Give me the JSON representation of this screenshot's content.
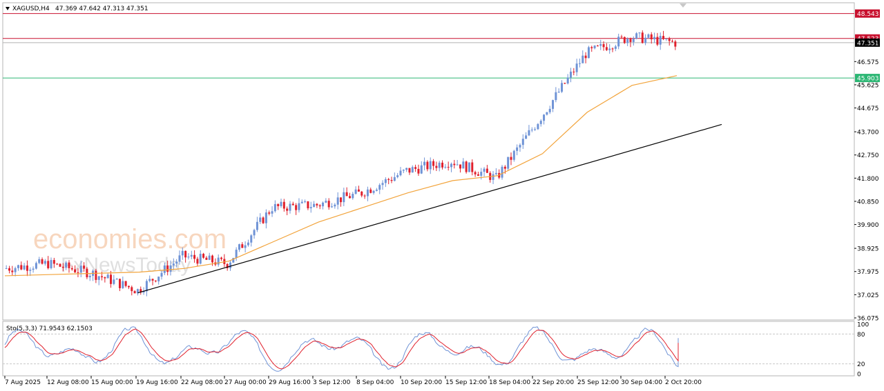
{
  "header": {
    "symbol": "XAGUSD,H4",
    "ohlc": "47.369 47.642 47.313 47.351"
  },
  "watermark": {
    "brand": "economies.com",
    "secondary": "FxNewsToday"
  },
  "colors": {
    "bull": "#6f93d6",
    "bear": "#e0202c",
    "ma": "#f2a33a",
    "trendline": "#000000",
    "resistance": "#c8102e",
    "support": "#2bb673",
    "stoch_main": "#6f93d6",
    "stoch_signal": "#e0202c"
  },
  "levels": {
    "resistance_1": "48.543",
    "resistance_2": "47.523",
    "current_price": "47.351",
    "support": "45.903"
  },
  "indicator": {
    "label": "Sto(5,3,3) 71.9543 62.1503",
    "axis_labels": [
      "100",
      "80",
      "20",
      "0"
    ]
  },
  "price_axis": [
    "48.543",
    "47.523",
    "47.351",
    "46.575",
    "45.903",
    "45.625",
    "44.675",
    "43.700",
    "42.750",
    "41.800",
    "40.850",
    "39.900",
    "38.925",
    "37.975",
    "37.025",
    "36.075"
  ],
  "time_axis": [
    "7 Aug 2025",
    "12 Aug 08:00",
    "15 Aug 00:00",
    "19 Aug 16:00",
    "22 Aug 08:00",
    "27 Aug 00:00",
    "29 Aug 16:00",
    "3 Sep 12:00",
    "8 Sep 04:00",
    "10 Sep 20:00",
    "15 Sep 12:00",
    "18 Sep 04:00",
    "22 Sep 20:00",
    "25 Sep 12:00",
    "30 Sep 04:00",
    "2 Oct 20:00"
  ],
  "chart_data": {
    "type": "candlestick",
    "symbol": "XAGUSD",
    "timeframe": "H4",
    "ylim": [
      36.075,
      48.9
    ],
    "x": [
      "7 Aug 2025",
      "12 Aug 08:00",
      "15 Aug 00:00",
      "19 Aug 16:00",
      "22 Aug 08:00",
      "27 Aug 00:00",
      "29 Aug 16:00",
      "3 Sep 12:00",
      "8 Sep 04:00",
      "10 Sep 20:00",
      "15 Sep 12:00",
      "18 Sep 04:00",
      "22 Sep 20:00",
      "25 Sep 12:00",
      "30 Sep 04:00",
      "2 Oct 20:00"
    ],
    "close_anchors": [
      38.1,
      38.3,
      37.9,
      37.2,
      38.6,
      38.3,
      40.6,
      40.7,
      41.2,
      42.1,
      42.5,
      41.8,
      44.3,
      46.9,
      47.6,
      47.35
    ],
    "moving_average": [
      37.8,
      37.85,
      37.9,
      37.95,
      38.1,
      38.4,
      39.2,
      40.0,
      40.6,
      41.2,
      41.7,
      41.9,
      42.8,
      44.5,
      45.6,
      46.0
    ],
    "trendline": {
      "start": [
        "19 Aug 16:00",
        37.1
      ],
      "end": [
        "2 Oct 20:00",
        44.0
      ]
    },
    "horizontal_levels": [
      48.543,
      47.523,
      45.903
    ],
    "last_price": 47.351,
    "stochastic": {
      "params": "5,3,3",
      "main_last": 71.9543,
      "signal_last": 62.1503,
      "levels": [
        80,
        20
      ]
    }
  }
}
